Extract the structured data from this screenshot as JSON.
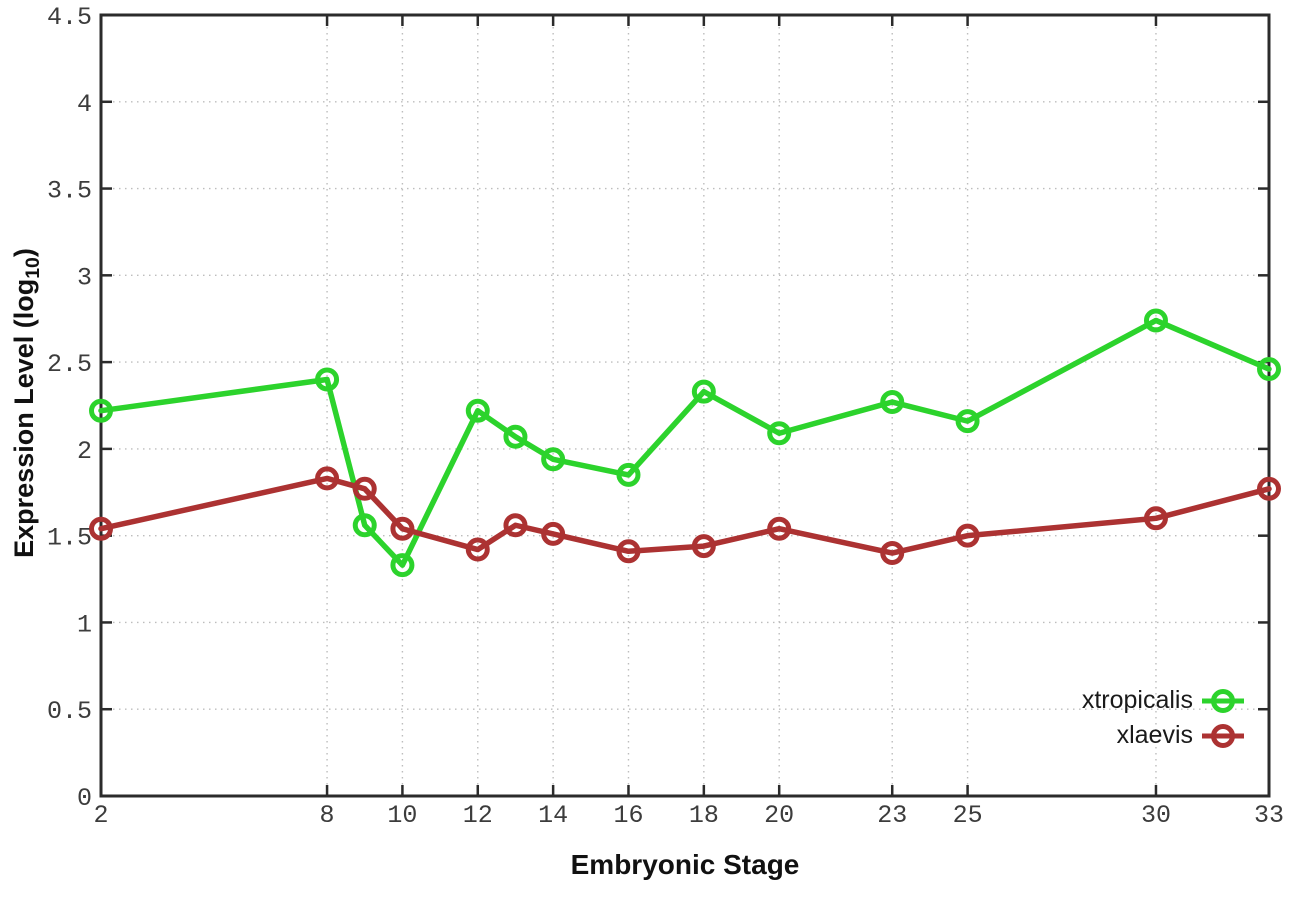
{
  "chart_data": {
    "type": "line",
    "title": "",
    "xlabel": "Embryonic Stage",
    "ylabel": "Expression Level (log10)",
    "ylabel_parts": {
      "main": "Expression Level (log",
      "sub": "10",
      "suffix": ")"
    },
    "x": [
      2,
      8,
      9,
      10,
      12,
      13,
      14,
      16,
      18,
      20,
      23,
      25,
      30,
      33
    ],
    "series": [
      {
        "name": "xtropicalis",
        "color": "#2cd32c",
        "values": [
          2.22,
          2.4,
          1.56,
          1.33,
          2.22,
          2.07,
          1.94,
          1.85,
          2.33,
          2.09,
          2.27,
          2.16,
          2.74,
          2.46
        ]
      },
      {
        "name": "xlaevis",
        "color": "#ac3232",
        "values": [
          1.54,
          1.83,
          1.77,
          1.54,
          1.42,
          1.56,
          1.51,
          1.41,
          1.44,
          1.54,
          1.4,
          1.5,
          1.6,
          1.77
        ]
      }
    ],
    "xlim": [
      2,
      33
    ],
    "ylim": [
      0,
      4.5
    ],
    "xticks": {
      "values": [
        2,
        8,
        10,
        12,
        14,
        16,
        18,
        20,
        23,
        25,
        30,
        33
      ],
      "labels": [
        "2",
        "8",
        "10",
        "12",
        "14",
        "16",
        "18",
        "20",
        "23",
        "25",
        "30",
        "33"
      ]
    },
    "yticks": {
      "values": [
        0,
        0.5,
        1,
        1.5,
        2,
        2.5,
        3,
        3.5,
        4,
        4.5
      ],
      "labels": [
        "0",
        "0.5",
        "1",
        "1.5",
        "2",
        "2.5",
        "3",
        "3.5",
        "4",
        "4.5"
      ]
    },
    "grid": true,
    "legend_position": "bottom-right",
    "colors": {
      "border": "#2b2b2b",
      "gridline": "#bdbdbd",
      "tick_label": "#3c3c3c",
      "background": "#ffffff"
    }
  }
}
